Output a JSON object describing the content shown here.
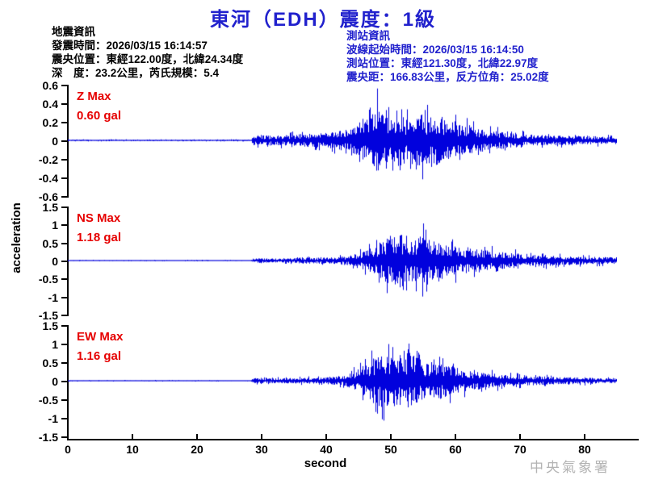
{
  "title": "東河（EDH）震度：1級",
  "earthquake_info": {
    "heading": "地震資訊",
    "origin_time": "發震時間：2026/03/15 16:14:57",
    "epicenter": "震央位置：東經122.00度，北緯24.34度",
    "depth_magnitude": "深　度：23.2公里，芮氏規模：5.4"
  },
  "station_info": {
    "heading": "測站資訊",
    "wave_start_time": "波線起始時間：2026/03/15 16:14:50",
    "station_location": "測站位置：東經121.30度，北緯22.97度",
    "distance_azimuth": "震央距：166.83公里，反方位角：25.02度"
  },
  "watermark": "中央氣象署",
  "colors": {
    "title_blue": "#2121cd",
    "trace_blue": "#0101dd",
    "annotation_red": "#e60000",
    "watermark_gray": "#b3b3b3",
    "axis_black": "#000000"
  },
  "chart_data": {
    "type": "line",
    "title": "東河（EDH）震度：1級",
    "xlabel": "second",
    "ylabel": "acceleration",
    "x_range": [
      0,
      88
    ],
    "x_ticks": [
      "0",
      "10",
      "20",
      "30",
      "40",
      "50",
      "60",
      "70",
      "80"
    ],
    "grid": false,
    "signal_onset_s": 28.5,
    "panels": [
      {
        "name": "Z",
        "label": "Z Max",
        "max_label": "0.60 gal",
        "max_gal": 0.6,
        "peak_time_s": 47.7,
        "ylim": [
          -0.6,
          0.6
        ],
        "y_ticks": [
          "0.6",
          "0.4",
          "0.2",
          "0",
          "-0.2",
          "-0.4",
          "-0.6"
        ],
        "envelope_gal_vs_s": [
          [
            0,
            0.012
          ],
          [
            28.3,
            0.012
          ],
          [
            28.6,
            0.09
          ],
          [
            31,
            0.08
          ],
          [
            34,
            0.09
          ],
          [
            37,
            0.11
          ],
          [
            40,
            0.13
          ],
          [
            43,
            0.17
          ],
          [
            45,
            0.25
          ],
          [
            46.5,
            0.38
          ],
          [
            47.7,
            0.6
          ],
          [
            48.8,
            0.4
          ],
          [
            50,
            0.36
          ],
          [
            51.5,
            0.42
          ],
          [
            53,
            0.34
          ],
          [
            54.5,
            0.44
          ],
          [
            56,
            0.38
          ],
          [
            57.5,
            0.42
          ],
          [
            59,
            0.3
          ],
          [
            61,
            0.26
          ],
          [
            63,
            0.21
          ],
          [
            65,
            0.17
          ],
          [
            68,
            0.13
          ],
          [
            71,
            0.1
          ],
          [
            74,
            0.085
          ],
          [
            78,
            0.075
          ],
          [
            82,
            0.07
          ],
          [
            85,
            0.065
          ]
        ]
      },
      {
        "name": "NS",
        "label": "NS Max",
        "max_label": "1.18 gal",
        "max_gal": 1.18,
        "peak_time_s": 51.5,
        "ylim": [
          -1.5,
          1.5
        ],
        "y_ticks": [
          "1.5",
          "1",
          "0.5",
          "0",
          "-0.5",
          "-1",
          "-1.5"
        ],
        "envelope_gal_vs_s": [
          [
            0,
            0.022
          ],
          [
            28.3,
            0.022
          ],
          [
            28.7,
            0.1
          ],
          [
            31,
            0.09
          ],
          [
            34,
            0.1
          ],
          [
            37,
            0.11
          ],
          [
            40,
            0.13
          ],
          [
            43,
            0.18
          ],
          [
            45,
            0.3
          ],
          [
            47,
            0.55
          ],
          [
            48.5,
            0.8
          ],
          [
            50,
            1.05
          ],
          [
            51.5,
            1.18
          ],
          [
            52.5,
            0.85
          ],
          [
            54,
            1.0
          ],
          [
            55.5,
            1.1
          ],
          [
            57,
            0.8
          ],
          [
            58.5,
            0.7
          ],
          [
            60,
            0.62
          ],
          [
            62,
            0.52
          ],
          [
            64,
            0.46
          ],
          [
            66,
            0.4
          ],
          [
            68,
            0.35
          ],
          [
            70,
            0.3
          ],
          [
            73,
            0.25
          ],
          [
            76,
            0.21
          ],
          [
            79,
            0.18
          ],
          [
            82,
            0.16
          ],
          [
            85,
            0.15
          ]
        ]
      },
      {
        "name": "EW",
        "label": "EW Max",
        "max_label": "1.16 gal",
        "max_gal": 1.16,
        "peak_time_s": 48.8,
        "ylim": [
          -1.5,
          1.5
        ],
        "y_ticks": [
          "1.5",
          "1",
          "0.5",
          "0",
          "-0.5",
          "-1",
          "-1.5"
        ],
        "envelope_gal_vs_s": [
          [
            0,
            0.022
          ],
          [
            28.3,
            0.022
          ],
          [
            28.7,
            0.11
          ],
          [
            31,
            0.1
          ],
          [
            34,
            0.11
          ],
          [
            37,
            0.12
          ],
          [
            40,
            0.14
          ],
          [
            42.5,
            0.2
          ],
          [
            44.5,
            0.4
          ],
          [
            46,
            0.7
          ],
          [
            47.5,
            1.0
          ],
          [
            48.8,
            1.16
          ],
          [
            50,
            0.95
          ],
          [
            51.5,
            1.1
          ],
          [
            53,
            1.16
          ],
          [
            54.5,
            0.8
          ],
          [
            56,
            0.72
          ],
          [
            57.5,
            0.78
          ],
          [
            59,
            0.62
          ],
          [
            61,
            0.48
          ],
          [
            63,
            0.38
          ],
          [
            65,
            0.32
          ],
          [
            67,
            0.27
          ],
          [
            69,
            0.23
          ],
          [
            72,
            0.19
          ],
          [
            75,
            0.16
          ],
          [
            78,
            0.14
          ],
          [
            81,
            0.12
          ],
          [
            85,
            0.11
          ]
        ]
      }
    ]
  }
}
